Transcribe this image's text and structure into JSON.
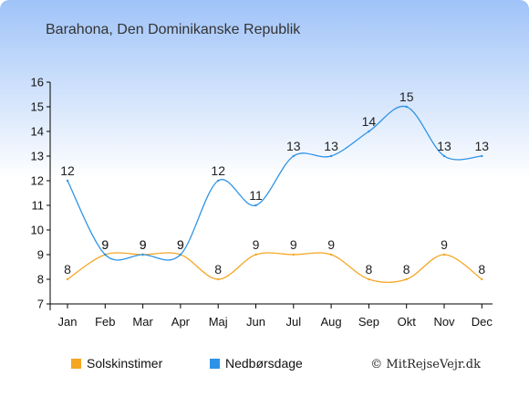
{
  "chart_data": {
    "type": "line",
    "title": "Barahona, Den Dominikanske Republik",
    "categories": [
      "Jan",
      "Feb",
      "Mar",
      "Apr",
      "Maj",
      "Jun",
      "Jul",
      "Aug",
      "Sep",
      "Okt",
      "Nov",
      "Dec"
    ],
    "series": [
      {
        "name": "Solskinstimer",
        "color": "#f5a623",
        "values": [
          8,
          9,
          9,
          9,
          8,
          9,
          9,
          9,
          8,
          8,
          9,
          8
        ]
      },
      {
        "name": "Nedbørsdage",
        "color": "#2e93e6",
        "values": [
          12,
          9,
          9,
          9,
          12,
          11,
          13,
          13,
          14,
          15,
          13,
          13
        ]
      }
    ],
    "y_ticks": [
      "7",
      "8",
      "9",
      "10",
      "11",
      "12",
      "13",
      "14",
      "15",
      "16"
    ],
    "ylim": [
      7,
      16
    ],
    "grid": false,
    "legend_position": "bottom-left",
    "credit": "© MitRejseVejr.dk"
  }
}
